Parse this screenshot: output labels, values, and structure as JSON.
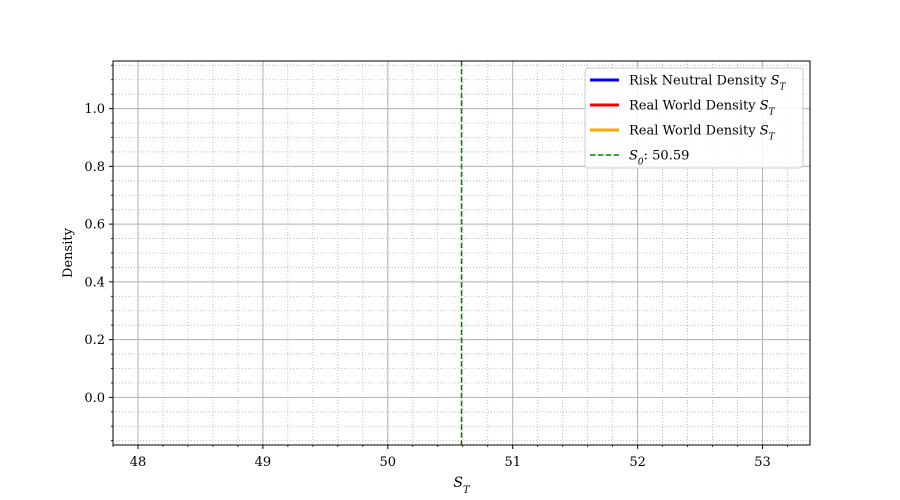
{
  "chart_data": {
    "type": "line",
    "title": "",
    "xlabel": {
      "base": "S",
      "sub": "T"
    },
    "ylabel": "Density",
    "xlim": [
      47.8,
      53.38
    ],
    "ylim": [
      -0.165,
      1.165
    ],
    "x_ticks": [
      48,
      49,
      50,
      51,
      52,
      53
    ],
    "x_minor_step": 0.2,
    "y_ticks": [
      0.0,
      0.2,
      0.4,
      0.6,
      0.8,
      1.0
    ],
    "y_minor_step": 0.05,
    "grid": true,
    "series": [
      {
        "name": "Risk Neutral Density ",
        "italic": {
          "base": "S",
          "sub": "T"
        },
        "color": "#0000ff",
        "style": "solid",
        "x": [],
        "y": []
      },
      {
        "name": "Real World Density ",
        "italic": {
          "base": "S",
          "sub": "T"
        },
        "color": "#ff0000",
        "style": "solid",
        "x": [],
        "y": []
      },
      {
        "name": "Real World Density ",
        "italic": {
          "base": "S",
          "sub": "T"
        },
        "color": "#ffa500",
        "style": "solid",
        "x": [],
        "y": []
      }
    ],
    "vline": {
      "x": 50.59,
      "color": "#008000",
      "style": "dashed",
      "label": {
        "base": "S",
        "sub": "0",
        "text": ": 50.59"
      }
    },
    "legend": {
      "position": "top-right"
    }
  }
}
